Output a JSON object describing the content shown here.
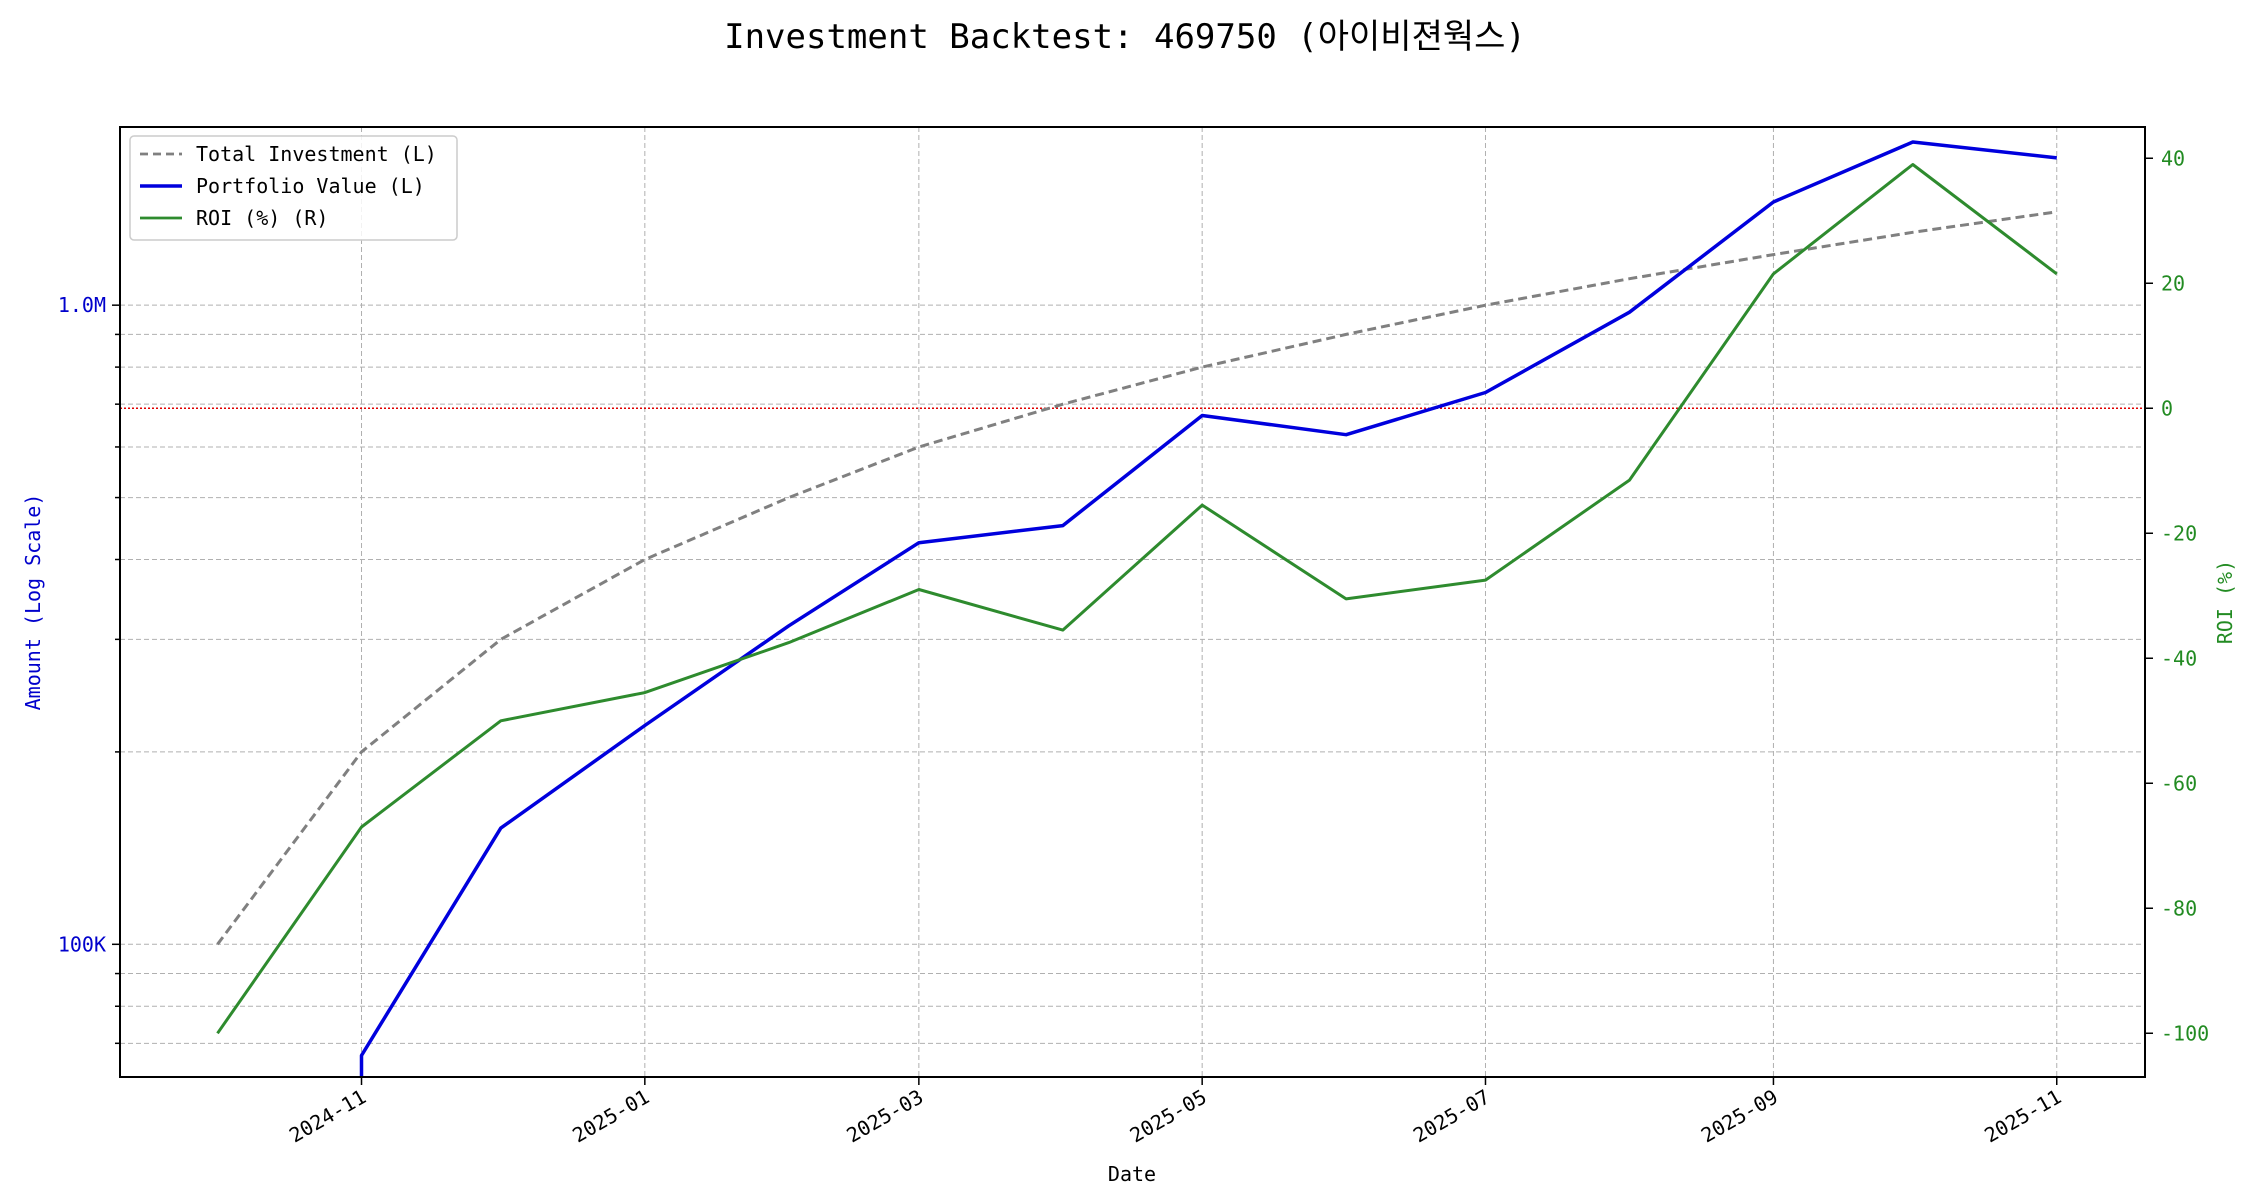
{
  "chart_data": {
    "type": "line",
    "title": "Investment Backtest: 469750 (아이비젼웍스)",
    "xlabel": "Date",
    "ylabel_left": "Amount (Log Scale)",
    "ylabel_right": "ROI (%)",
    "x_scale": "date",
    "y_left_scale": "log",
    "y_left_range": [
      62000,
      1900000
    ],
    "y_right_range": [
      -107,
      45
    ],
    "x_range": [
      "2024-09-10",
      "2025-11-20"
    ],
    "grid": true,
    "legend_position": "top-left",
    "x_ticks": [
      "2024-11",
      "2025-01",
      "2025-03",
      "2025-05",
      "2025-07",
      "2025-09",
      "2025-11"
    ],
    "y_left_ticks": [
      {
        "value": 100000,
        "label": "100K"
      },
      {
        "value": 1000000,
        "label": "1.0M"
      }
    ],
    "y_right_ticks": [
      40,
      20,
      0,
      -20,
      -40,
      -60,
      -80,
      -100
    ],
    "zero_line": {
      "axis": "right",
      "value": 0,
      "color": "#e00000"
    },
    "series": [
      {
        "name": "Total Investment (L)",
        "axis": "left",
        "color": "#808080",
        "dash": true,
        "x": [
          "2024-10-01",
          "2024-11-01",
          "2024-12-01",
          "2025-01-01",
          "2025-02-01",
          "2025-03-01",
          "2025-04-01",
          "2025-05-01",
          "2025-06-01",
          "2025-07-01",
          "2025-08-01",
          "2025-09-01",
          "2025-10-01",
          "2025-11-01"
        ],
        "values": [
          100000,
          200000,
          300000,
          400000,
          500000,
          600000,
          700000,
          800000,
          900000,
          1000000,
          1100000,
          1200000,
          1300000,
          1400000
        ]
      },
      {
        "name": "Portfolio Value (L)",
        "axis": "left",
        "color": "#0000dd",
        "dash": false,
        "x": [
          "2024-11-01",
          "2024-11-01",
          "2024-12-01",
          "2025-01-01",
          "2025-02-01",
          "2025-03-01",
          "2025-04-01",
          "2025-05-01",
          "2025-06-01",
          "2025-07-01",
          "2025-08-01",
          "2025-09-01",
          "2025-10-01",
          "2025-11-01"
        ],
        "values": [
          62000,
          67000,
          152000,
          220000,
          315000,
          425000,
          452000,
          672000,
          627000,
          730000,
          975000,
          1450000,
          1800000,
          1700000
        ]
      },
      {
        "name": "ROI (%) (R)",
        "axis": "right",
        "color": "#2e8b2e",
        "dash": false,
        "x": [
          "2024-10-01",
          "2024-11-01",
          "2024-12-01",
          "2025-01-01",
          "2025-02-01",
          "2025-03-01",
          "2025-04-01",
          "2025-05-01",
          "2025-06-01",
          "2025-07-01",
          "2025-08-01",
          "2025-09-01",
          "2025-10-01",
          "2025-11-01"
        ],
        "values": [
          -100,
          -67,
          -50,
          -45.5,
          -37.5,
          -29,
          -35.5,
          -15.5,
          -30.5,
          -27.5,
          -11.5,
          21.5,
          39,
          21.5
        ]
      }
    ]
  }
}
